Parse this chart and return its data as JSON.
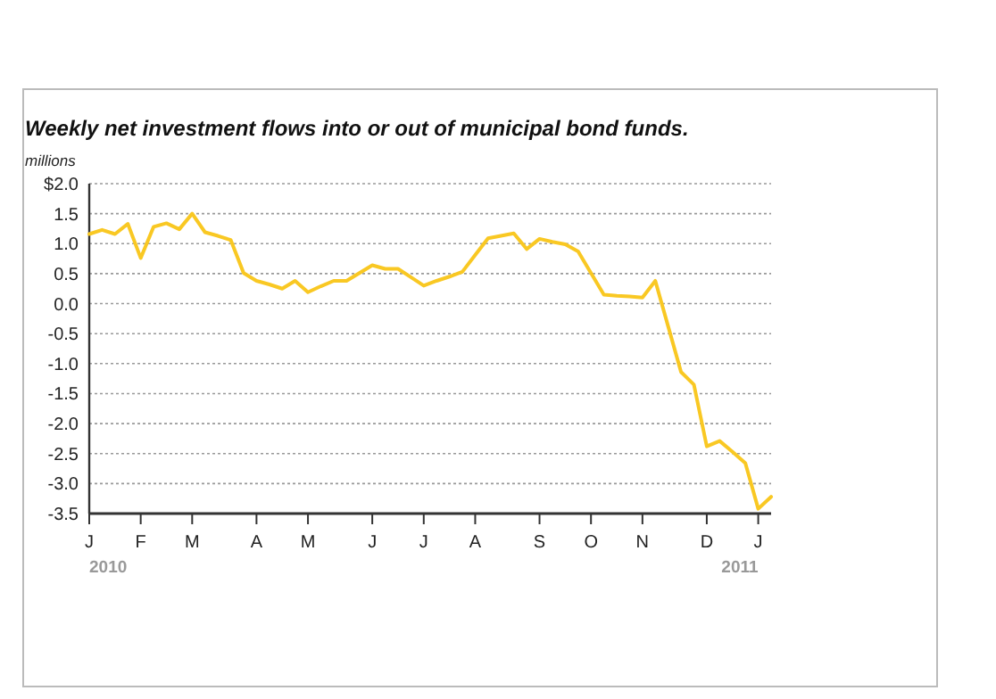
{
  "chart_data": {
    "type": "line",
    "title": "Weekly net investment flows into or out of municipal bond funds.",
    "ylabel": "millions",
    "categories": [
      "J",
      null,
      null,
      null,
      "F",
      null,
      null,
      null,
      "M",
      null,
      null,
      null,
      null,
      "A",
      null,
      null,
      null,
      "M",
      null,
      null,
      null,
      null,
      "J",
      null,
      null,
      null,
      "J",
      null,
      null,
      null,
      "A",
      null,
      null,
      null,
      null,
      "S",
      null,
      null,
      null,
      "O",
      null,
      null,
      null,
      "N",
      null,
      null,
      null,
      null,
      "D",
      null,
      null,
      null,
      "J",
      null
    ],
    "series": [
      {
        "color": "#f9c823",
        "values": [
          1.16,
          1.23,
          1.16,
          1.33,
          0.76,
          1.28,
          1.34,
          1.24,
          1.5,
          1.19,
          1.13,
          1.06,
          0.51,
          0.38,
          0.32,
          0.25,
          0.38,
          0.19,
          0.29,
          0.38,
          0.38,
          0.51,
          0.64,
          0.58,
          0.58,
          0.44,
          0.3,
          0.38,
          0.45,
          0.53,
          0.81,
          1.09,
          1.13,
          1.17,
          0.91,
          1.08,
          1.03,
          0.99,
          0.87,
          0.51,
          0.15,
          0.13,
          0.12,
          0.1,
          0.38,
          -0.38,
          -1.14,
          -1.35,
          -2.38,
          -2.29,
          -2.47,
          -2.66,
          -3.42,
          -3.22
        ]
      }
    ],
    "ylim": [
      -3.5,
      2
    ],
    "yticks": [
      {
        "value": 2,
        "label": "$2.0"
      },
      {
        "value": 1.5,
        "label": "1.5"
      },
      {
        "value": 1,
        "label": "1.0"
      },
      {
        "value": 0.5,
        "label": "0.5"
      },
      {
        "value": 0,
        "label": "0.0"
      },
      {
        "value": -0.5,
        "label": "-0.5"
      },
      {
        "value": -1,
        "label": "-1.0"
      },
      {
        "value": -1.5,
        "label": "-1.5"
      },
      {
        "value": -2,
        "label": "-2.0"
      },
      {
        "value": -2.5,
        "label": "-2.5"
      },
      {
        "value": -3,
        "label": "-3.0"
      },
      {
        "value": -3.5,
        "label": "-3.5"
      }
    ],
    "grid": "y",
    "marker": "none",
    "line_style": "solid",
    "annotations": [
      "2010",
      "2011"
    ]
  }
}
